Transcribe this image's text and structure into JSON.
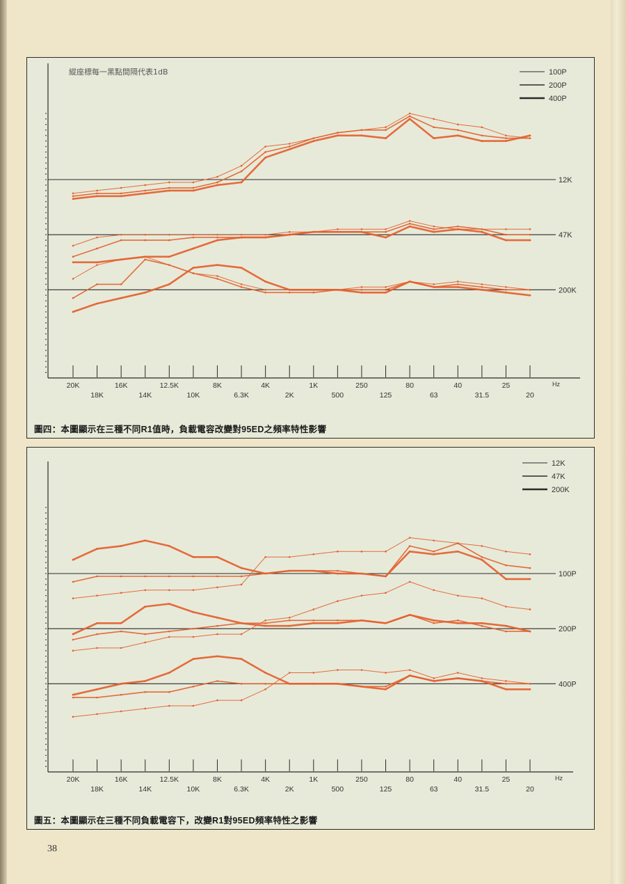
{
  "page_number": "38",
  "colors": {
    "curve": "#e4602f",
    "axis": "#2a2a2a",
    "text": "#333333"
  },
  "chart_data": [
    {
      "type": "line",
      "note": "縱座標每一黑點間隔代表1dB",
      "caption": "圖四：本圖顯示在三種不同R1值時，負載電容改變對95ED之頻率特性影響",
      "x_ticks": [
        "20K",
        "18K",
        "16K",
        "14K",
        "12.5K",
        "10K",
        "8K",
        "6.3K",
        "4K",
        "2K",
        "1K",
        "500",
        "250",
        "125",
        "80",
        "63",
        "40",
        "31.5",
        "25",
        "20"
      ],
      "x_unit": "Hz",
      "ylim": [
        0,
        48
      ],
      "legend": [
        {
          "label": "100P",
          "weight": 1
        },
        {
          "label": "200P",
          "weight": 2
        },
        {
          "label": "400P",
          "weight": 3
        }
      ],
      "groups": [
        {
          "label": "12K",
          "ref": 36,
          "series": [
            {
              "legend": "100P",
              "values": [
                33.5,
                34,
                34.5,
                35,
                35.5,
                35.5,
                36.5,
                38.5,
                42,
                42.5,
                43.5,
                44.5,
                45,
                45.5,
                48,
                47,
                46,
                45.5,
                44,
                43.5
              ]
            },
            {
              "legend": "200P",
              "values": [
                33,
                33.5,
                33.5,
                34,
                34.5,
                34.5,
                35.5,
                37.5,
                41,
                42,
                43.5,
                44.5,
                45,
                45,
                47.5,
                45.5,
                45,
                44,
                43.5,
                43.5
              ]
            },
            {
              "legend": "400P",
              "values": [
                32.5,
                33,
                33,
                33.5,
                34,
                34,
                35,
                35.5,
                40,
                41.5,
                43,
                44,
                44,
                43.5,
                47,
                43.5,
                44,
                43,
                43,
                44
              ]
            }
          ]
        },
        {
          "label": "47K",
          "ref": 26,
          "series": [
            {
              "legend": "100P",
              "values": [
                24,
                25.5,
                26,
                26,
                26,
                26,
                26,
                26,
                26,
                26.5,
                26.5,
                27,
                27,
                27,
                28.5,
                27.5,
                27,
                27,
                27,
                27
              ]
            },
            {
              "legend": "200P",
              "values": [
                22,
                23.5,
                25,
                25,
                25,
                25.5,
                25.5,
                25.5,
                25.5,
                26,
                26.5,
                26.5,
                26.5,
                26.5,
                28,
                27,
                27.5,
                27,
                26,
                26
              ]
            },
            {
              "legend": "400P",
              "values": [
                21,
                21,
                21.5,
                22,
                22,
                23.5,
                25,
                25.5,
                25.5,
                26,
                26.5,
                26.5,
                26.5,
                25.5,
                27.5,
                26.5,
                27,
                26.5,
                25,
                25
              ]
            }
          ]
        },
        {
          "label": "200K",
          "ref": 16,
          "series": [
            {
              "legend": "100P",
              "values": [
                18,
                20.5,
                21.5,
                22,
                20.5,
                19,
                18.5,
                17,
                16,
                16,
                16,
                16,
                16.5,
                16.5,
                17.5,
                17,
                17.5,
                17,
                16.5,
                16
              ]
            },
            {
              "legend": "200P",
              "values": [
                14.5,
                17,
                17,
                21.5,
                20.5,
                19,
                18,
                16.5,
                15.5,
                15.5,
                15.5,
                16,
                16,
                16,
                17.5,
                16.5,
                17,
                16.5,
                16,
                16
              ]
            },
            {
              "legend": "400P",
              "values": [
                12,
                13.5,
                14.5,
                15.5,
                17,
                20,
                20.5,
                20,
                17.5,
                16,
                16,
                16,
                15.5,
                15.5,
                17.5,
                16.5,
                16.5,
                16,
                15.5,
                15
              ]
            }
          ]
        }
      ]
    },
    {
      "type": "line",
      "caption": "圖五：本圖顯示在三種不同負載電容下，改變R1對95ED頻率特性之影響",
      "x_ticks": [
        "20K",
        "18K",
        "16K",
        "14K",
        "12.5K",
        "10K",
        "8K",
        "6.3K",
        "4K",
        "2K",
        "1K",
        "500",
        "250",
        "125",
        "80",
        "63",
        "40",
        "31.5",
        "25",
        "20"
      ],
      "x_unit": "Hz",
      "ylim": [
        0,
        48
      ],
      "legend": [
        {
          "label": "12K",
          "weight": 1
        },
        {
          "label": "47K",
          "weight": 2
        },
        {
          "label": "200K",
          "weight": 3
        }
      ],
      "groups": [
        {
          "label": "100P",
          "ref": 36,
          "series": [
            {
              "legend": "12K",
              "values": [
                31.5,
                32,
                32.5,
                33,
                33,
                33,
                33.5,
                34,
                39,
                39,
                39.5,
                40,
                40,
                40,
                42.5,
                42,
                41.5,
                41,
                40,
                39.5
              ]
            },
            {
              "legend": "47K",
              "values": [
                34.5,
                35.5,
                35.5,
                35.5,
                35.5,
                35.5,
                35.5,
                35.5,
                36,
                36.5,
                36.5,
                36.5,
                36,
                35.5,
                41,
                40,
                41.5,
                39,
                37.5,
                37
              ]
            },
            {
              "legend": "200K",
              "values": [
                38.5,
                40.5,
                41,
                42,
                41,
                39,
                39,
                37,
                36,
                36.5,
                36.5,
                36,
                36,
                35.5,
                40,
                39.5,
                40,
                38.5,
                35,
                35
              ]
            }
          ]
        },
        {
          "label": "200P",
          "ref": 26,
          "series": [
            {
              "legend": "12K",
              "values": [
                22,
                22.5,
                22.5,
                23.5,
                24.5,
                24.5,
                25,
                25,
                27.5,
                28,
                29.5,
                31,
                32,
                32.5,
                34.5,
                33,
                32,
                31.5,
                30,
                29.5
              ]
            },
            {
              "legend": "47K",
              "values": [
                24,
                25,
                25.5,
                25,
                25.5,
                26,
                26.5,
                27,
                27,
                27.5,
                27.5,
                27.5,
                27.5,
                27,
                28.5,
                27,
                27.5,
                26.5,
                25.5,
                25.5
              ]
            },
            {
              "legend": "200K",
              "values": [
                25,
                27,
                27,
                30,
                30.5,
                29,
                28,
                27,
                26.5,
                26.5,
                27,
                27,
                27.5,
                27,
                28.5,
                27.5,
                27,
                27,
                26.5,
                25.5
              ]
            }
          ]
        },
        {
          "label": "400P",
          "ref": 16,
          "series": [
            {
              "legend": "12K",
              "values": [
                10,
                10.5,
                11,
                11.5,
                12,
                12,
                13,
                13,
                15,
                18,
                18,
                18.5,
                18.5,
                18,
                18.5,
                17,
                18,
                17,
                16.5,
                16
              ]
            },
            {
              "legend": "47K",
              "values": [
                13.5,
                13.5,
                14,
                14.5,
                14.5,
                15.5,
                16.5,
                16,
                16,
                16,
                16,
                16,
                15.5,
                15.5,
                17.5,
                16.5,
                17,
                16.5,
                16,
                16
              ]
            },
            {
              "legend": "200K",
              "values": [
                14,
                15,
                16,
                16.5,
                18,
                20.5,
                21,
                20.5,
                18,
                16,
                16,
                16,
                15.5,
                15,
                17.5,
                16.5,
                17,
                16.5,
                15,
                15
              ]
            }
          ]
        }
      ]
    }
  ]
}
